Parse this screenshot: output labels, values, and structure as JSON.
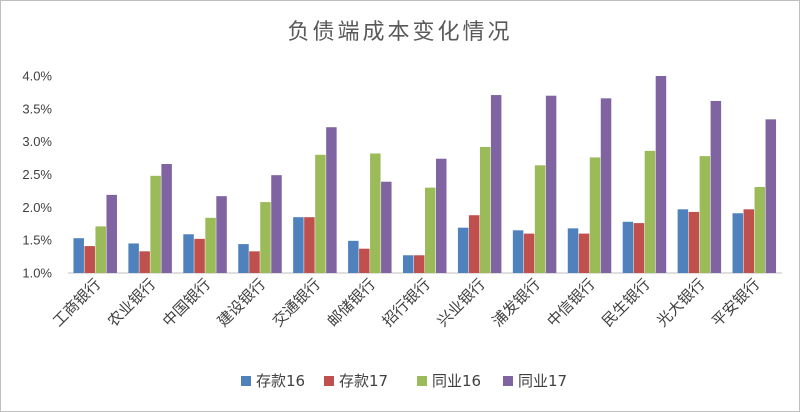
{
  "chart_data": {
    "type": "bar",
    "title": "负债端成本变化情况",
    "categories": [
      "工商银行",
      "农业银行",
      "中国银行",
      "建设银行",
      "交通银行",
      "邮储银行",
      "招行银行",
      "兴业银行",
      "浦发银行",
      "中信银行",
      "民生银行",
      "光大银行",
      "平安银行"
    ],
    "series": [
      {
        "name": "存款16",
        "color": "#4f81bd",
        "values": [
          1.53,
          1.45,
          1.59,
          1.44,
          1.85,
          1.49,
          1.27,
          1.69,
          1.65,
          1.68,
          1.78,
          1.97,
          1.91
        ]
      },
      {
        "name": "存款17",
        "color": "#c0504d",
        "values": [
          1.41,
          1.33,
          1.52,
          1.33,
          1.85,
          1.37,
          1.27,
          1.88,
          1.6,
          1.6,
          1.76,
          1.93,
          1.97
        ]
      },
      {
        "name": "同业16",
        "color": "#9bbb59",
        "values": [
          1.71,
          2.48,
          1.84,
          2.08,
          2.8,
          2.82,
          2.3,
          2.92,
          2.64,
          2.76,
          2.86,
          2.78,
          2.31
        ]
      },
      {
        "name": "同业17",
        "color": "#8064a2",
        "values": [
          2.19,
          2.66,
          2.17,
          2.49,
          3.22,
          2.39,
          2.74,
          3.71,
          3.7,
          3.66,
          4.0,
          3.62,
          3.34
        ]
      }
    ],
    "ylim": [
      1.0,
      4.0
    ],
    "yticks": [
      "1.0%",
      "1.5%",
      "2.0%",
      "2.5%",
      "3.0%",
      "3.5%",
      "4.0%"
    ],
    "grid": false,
    "legend": "bottom"
  }
}
